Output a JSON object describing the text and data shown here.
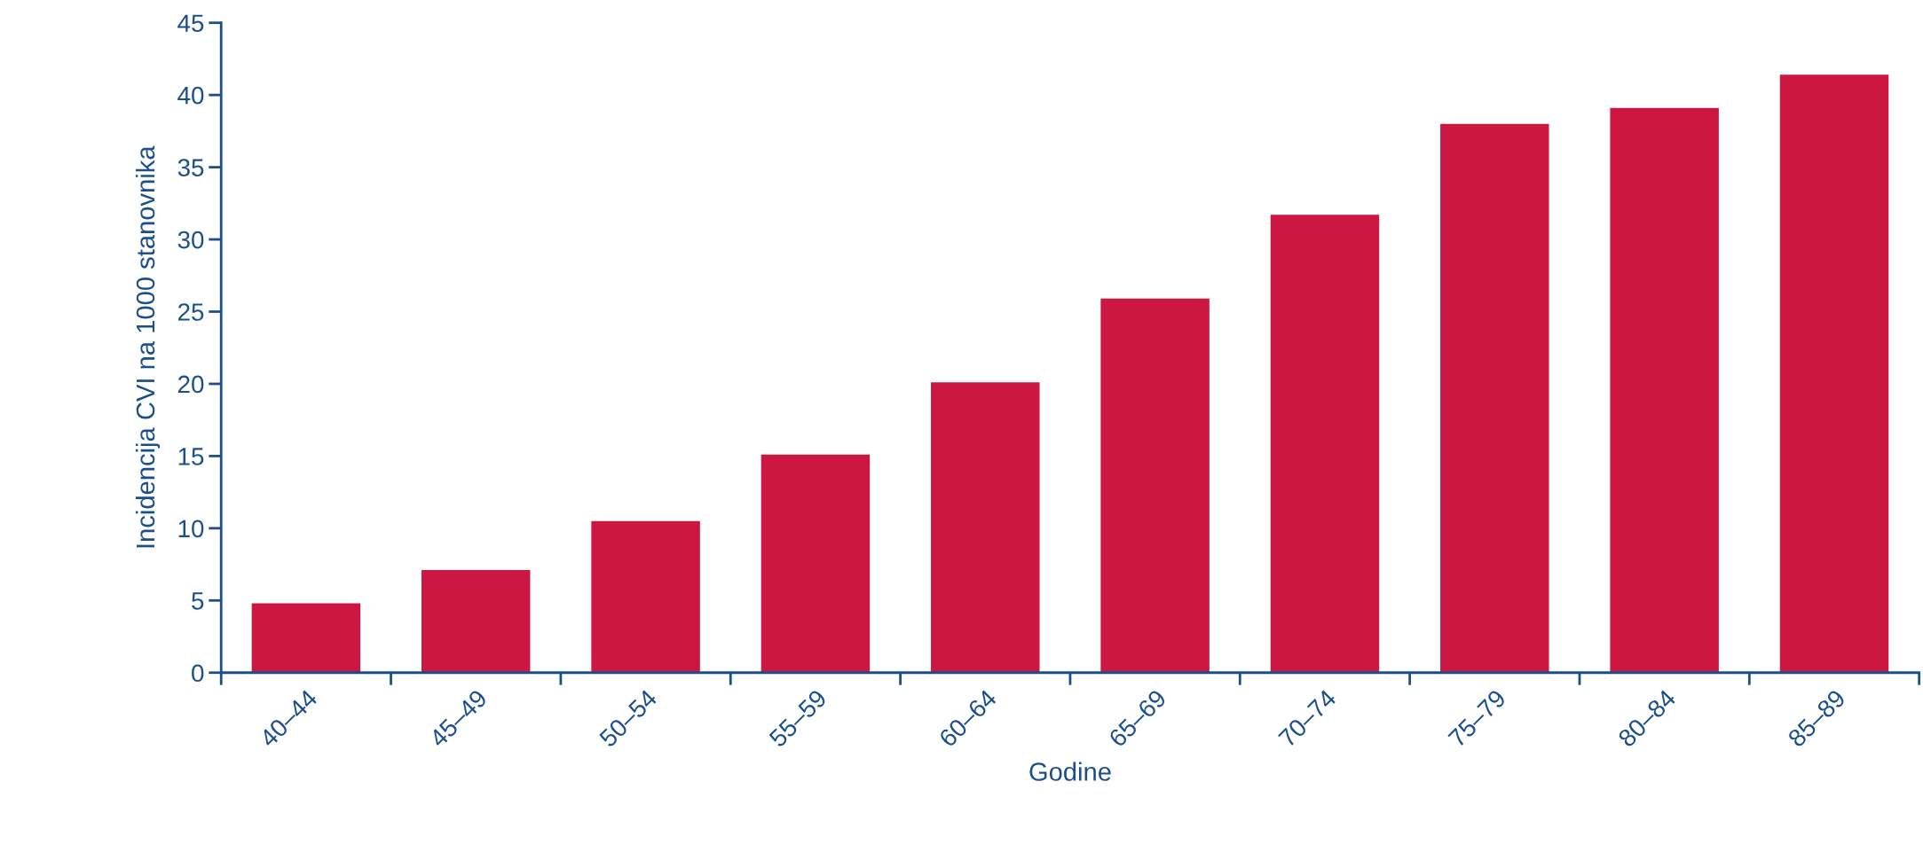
{
  "chart_data": {
    "type": "bar",
    "xlabel": "Godine",
    "ylabel": "Incidencija CVI na 1000 stanovnika",
    "categories": [
      "40–44",
      "45–49",
      "50–54",
      "55–59",
      "60–64",
      "65–69",
      "70–74",
      "75–79",
      "80–84",
      "85–89"
    ],
    "values": [
      4.8,
      7.1,
      10.5,
      15.1,
      20.1,
      25.9,
      31.7,
      38.0,
      39.1,
      41.4
    ],
    "color": "#cc1742",
    "ylim": [
      0,
      45
    ],
    "yticks": [
      0,
      5,
      10,
      15,
      20,
      25,
      30,
      35,
      40,
      45
    ],
    "grid": false,
    "legend": false
  }
}
